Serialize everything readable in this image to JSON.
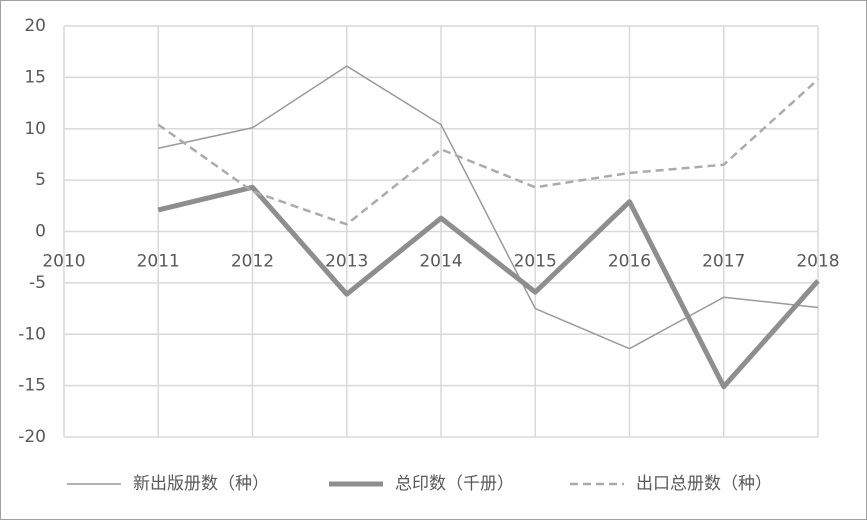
{
  "chart_data": {
    "type": "line",
    "x": [
      2010,
      2011,
      2012,
      2013,
      2014,
      2015,
      2016,
      2017,
      2018
    ],
    "xlim": [
      2010,
      2018
    ],
    "xticks": [
      2010,
      2011,
      2012,
      2013,
      2014,
      2015,
      2016,
      2017,
      2018
    ],
    "ylim": [
      -20,
      20
    ],
    "yticks": [
      -20,
      -15,
      -10,
      -5,
      0,
      5,
      10,
      15,
      20
    ],
    "grid": true,
    "legend": "bottom",
    "series": [
      {
        "name": "新出版册数（种）",
        "color": "#9a9a9a",
        "width": 1.5,
        "style": "solid",
        "values": [
          null,
          8.1,
          10.1,
          16.1,
          10.4,
          -7.5,
          -11.4,
          -6.4,
          -7.4
        ]
      },
      {
        "name": "总印数（千册）",
        "color": "#8e8e8e",
        "width": 5,
        "style": "solid",
        "values": [
          null,
          2.1,
          4.3,
          -6.1,
          1.3,
          -5.9,
          2.9,
          -15.1,
          -4.8
        ]
      },
      {
        "name": "出口总册数（种）",
        "color": "#ababab",
        "width": 2.5,
        "style": "dashed",
        "values": [
          null,
          10.4,
          3.9,
          0.7,
          8.0,
          4.3,
          5.7,
          6.5,
          14.8
        ]
      }
    ]
  }
}
